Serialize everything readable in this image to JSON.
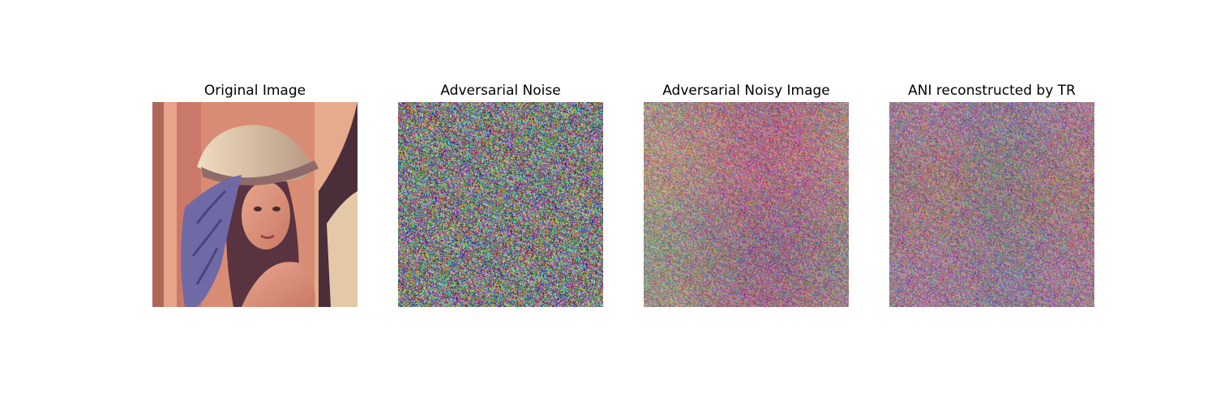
{
  "figure": {
    "panels": [
      {
        "title": "Original Image",
        "image": "portrait-photo"
      },
      {
        "title": "Adversarial Noise",
        "image": "rgb-noise"
      },
      {
        "title": "Adversarial Noisy Image",
        "image": "noisy-portrait"
      },
      {
        "title": "ANI reconstructed by TR",
        "image": "reconstructed-noisy-portrait"
      }
    ]
  },
  "colors": {
    "background": "#ffffff",
    "portrait_base": "#c9745f",
    "hat": "#d8c3a6",
    "feather": "#6f6aa6"
  }
}
